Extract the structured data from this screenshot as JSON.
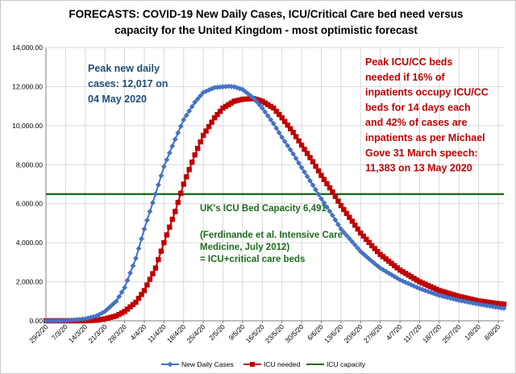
{
  "chart_data": {
    "type": "line",
    "title": "FORECASTS: COVID-19 New Daily Cases, ICU/Critical Care bed need versus capacity for the United Kingdom - most optimistic forecast",
    "title_lines": [
      "FORECASTS: COVID-19 New Daily Cases, ICU/Critical Care bed need versus",
      "capacity  for the United Kingdom -  most optimistic  forecast"
    ],
    "x_start": "29/2/20",
    "x_end": "10/8/20",
    "x_tick_labels": [
      "29/2/20",
      "7/3/20",
      "14/3/20",
      "21/3/20",
      "28/3/20",
      "4/4/20",
      "11/4/20",
      "18/4/20",
      "25/4/20",
      "2/5/20",
      "9/5/20",
      "16/5/20",
      "23/5/20",
      "30/5/20",
      "6/6/20",
      "13/6/20",
      "20/6/20",
      "27/6/20",
      "4/7/20",
      "11/7/20",
      "18/7/20",
      "25/7/20",
      "1/8/20",
      "8/8/20"
    ],
    "ylim": [
      0,
      14000
    ],
    "y_tick_labels": [
      "0.00",
      "2,000.00",
      "4,000.00",
      "6,000.00",
      "8,000.00",
      "10,000.00",
      "12,000.00",
      "14,000.00"
    ],
    "grid": true,
    "legend_position": "bottom",
    "series": [
      {
        "name": "New Daily Cases",
        "color": "#4472C4",
        "marker": "diamond",
        "points": [
          [
            "29/2/20",
            0
          ],
          [
            "7/3/20",
            5
          ],
          [
            "14/3/20",
            100
          ],
          [
            "18/3/20",
            250
          ],
          [
            "21/3/20",
            480
          ],
          [
            "25/3/20",
            1000
          ],
          [
            "28/3/20",
            1700
          ],
          [
            "1/4/20",
            3200
          ],
          [
            "4/4/20",
            4700
          ],
          [
            "8/4/20",
            6500
          ],
          [
            "11/4/20",
            7900
          ],
          [
            "15/4/20",
            9300
          ],
          [
            "18/4/20",
            10300
          ],
          [
            "22/4/20",
            11200
          ],
          [
            "25/4/20",
            11700
          ],
          [
            "29/4/20",
            11950
          ],
          [
            "4/5/20",
            12017
          ],
          [
            "6/5/20",
            11990
          ],
          [
            "9/5/20",
            11850
          ],
          [
            "13/5/20",
            11400
          ],
          [
            "16/5/20",
            10900
          ],
          [
            "20/5/20",
            10100
          ],
          [
            "23/5/20",
            9400
          ],
          [
            "27/5/20",
            8550
          ],
          [
            "30/5/20",
            7850
          ],
          [
            "3/6/20",
            6950
          ],
          [
            "6/6/20",
            6250
          ],
          [
            "10/6/20",
            5400
          ],
          [
            "13/6/20",
            4700
          ],
          [
            "17/6/20",
            4050
          ],
          [
            "20/6/20",
            3550
          ],
          [
            "24/6/20",
            3050
          ],
          [
            "27/6/20",
            2700
          ],
          [
            "4/7/20",
            2100
          ],
          [
            "11/7/20",
            1650
          ],
          [
            "18/7/20",
            1300
          ],
          [
            "25/7/20",
            1050
          ],
          [
            "1/8/20",
            850
          ],
          [
            "8/8/20",
            680
          ],
          [
            "10/8/20",
            640
          ]
        ]
      },
      {
        "name": "ICU needed",
        "color": "#C00000",
        "marker": "square",
        "points": [
          [
            "29/2/20",
            0
          ],
          [
            "7/3/20",
            0
          ],
          [
            "14/3/20",
            0
          ],
          [
            "18/3/20",
            30
          ],
          [
            "21/3/20",
            100
          ],
          [
            "25/3/20",
            250
          ],
          [
            "28/3/20",
            480
          ],
          [
            "1/4/20",
            950
          ],
          [
            "4/4/20",
            1550
          ],
          [
            "8/4/20",
            2700
          ],
          [
            "11/4/20",
            4000
          ],
          [
            "15/4/20",
            5600
          ],
          [
            "18/4/20",
            7000
          ],
          [
            "22/4/20",
            8500
          ],
          [
            "25/4/20",
            9500
          ],
          [
            "29/4/20",
            10400
          ],
          [
            "2/5/20",
            10900
          ],
          [
            "6/5/20",
            11250
          ],
          [
            "9/5/20",
            11350
          ],
          [
            "13/5/20",
            11383
          ],
          [
            "16/5/20",
            11250
          ],
          [
            "20/5/20",
            10900
          ],
          [
            "23/5/20",
            10400
          ],
          [
            "27/5/20",
            9650
          ],
          [
            "30/5/20",
            9000
          ],
          [
            "3/6/20",
            8150
          ],
          [
            "6/6/20",
            7450
          ],
          [
            "10/6/20",
            6600
          ],
          [
            "13/6/20",
            5900
          ],
          [
            "17/6/20",
            5100
          ],
          [
            "20/6/20",
            4500
          ],
          [
            "24/6/20",
            3850
          ],
          [
            "27/6/20",
            3400
          ],
          [
            "4/7/20",
            2600
          ],
          [
            "11/7/20",
            2000
          ],
          [
            "18/7/20",
            1550
          ],
          [
            "25/7/20",
            1250
          ],
          [
            "1/8/20",
            1020
          ],
          [
            "8/8/20",
            880
          ],
          [
            "10/8/20",
            850
          ]
        ]
      },
      {
        "name": "ICU capacity",
        "color": "#1E6B1E",
        "marker": "none",
        "points": [
          [
            "29/2/20",
            6491
          ],
          [
            "10/8/20",
            6491
          ]
        ]
      }
    ],
    "annotations": {
      "blue": [
        "Peak new daily",
        "cases: 12,017 on",
        "04 May 2020"
      ],
      "red": [
        "Peak ICU/CC beds",
        "needed if 16% of",
        "inpatients occupy ICU/CC",
        "beds for 14 days each",
        "and 42% of cases are",
        "inpatients as per Michael",
        "Gove 31 March speech:",
        "11,383 on 13 May 2020"
      ],
      "green_main": "UK's ICU Bed Capacity 6,491",
      "green_sub": [
        "(Ferdinande et al. Intensive Care",
        "Medicine, July 2012)",
        "= ICU+critical care beds"
      ]
    }
  }
}
